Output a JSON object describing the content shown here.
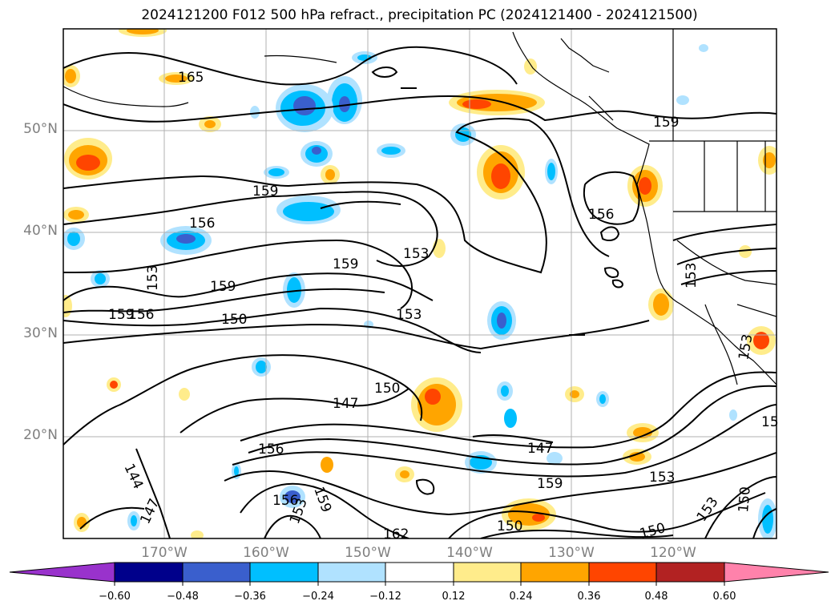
{
  "title": "2024121200 F012 500 hPa refract., precipitation PC (2024121400 - 2024121500)",
  "map": {
    "lat_labels": [
      "50°N",
      "40°N",
      "30°N",
      "20°N"
    ],
    "lon_labels": [
      "170°W",
      "160°W",
      "150°W",
      "140°W",
      "130°W",
      "120°W"
    ],
    "contour_labels": [
      "165",
      "159",
      "159",
      "156",
      "159",
      "153",
      "159",
      "156",
      "153",
      "156",
      "159",
      "150",
      "153",
      "153",
      "150",
      "147",
      "147",
      "156",
      "156",
      "153",
      "159",
      "153",
      "144",
      "147",
      "159",
      "153",
      "150",
      "150",
      "150",
      "153",
      "162",
      "15"
    ]
  },
  "colorbar": {
    "tick_labels": [
      "−0.60",
      "−0.48",
      "−0.36",
      "−0.24",
      "−0.12",
      "0.12",
      "0.24",
      "0.36",
      "0.48",
      "0.60"
    ],
    "colors": [
      "#9932cc",
      "#00008b",
      "#3a5fcd",
      "#00bfff",
      "#b0e2ff",
      "#ffffff",
      "#ffec8b",
      "#ffa500",
      "#ff4500",
      "#b22222",
      "#ff82ab"
    ]
  }
}
